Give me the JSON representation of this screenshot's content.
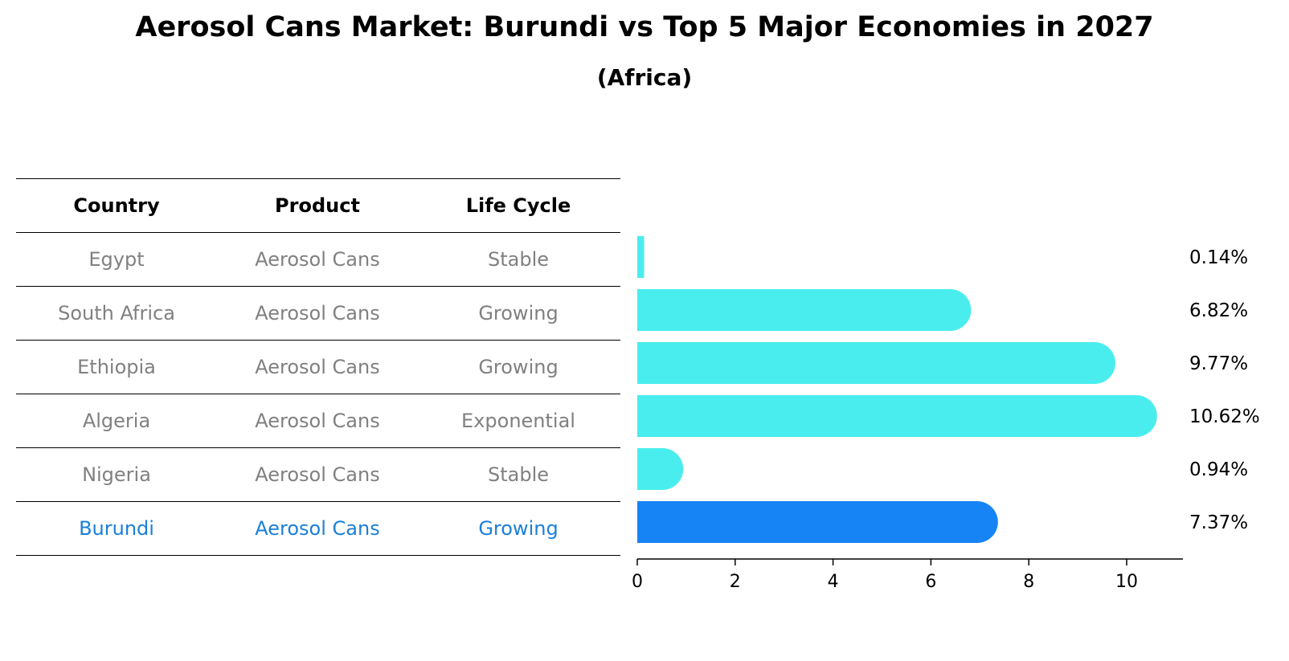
{
  "title": "Aerosol Cans Market: Burundi vs Top 5 Major Economies in 2027",
  "subtitle": "(Africa)",
  "table": {
    "headers": [
      "Country",
      "Product",
      "Life Cycle"
    ],
    "rows": [
      [
        "Egypt",
        "Aerosol Cans",
        "Stable"
      ],
      [
        "South Africa",
        "Aerosol Cans",
        "Growing"
      ],
      [
        "Ethiopia",
        "Aerosol Cans",
        "Growing"
      ],
      [
        "Algeria",
        "Aerosol Cans",
        "Exponential"
      ],
      [
        "Nigeria",
        "Aerosol Cans",
        "Stable"
      ],
      [
        "Burundi",
        "Aerosol Cans",
        "Growing"
      ]
    ],
    "highlight_row": 5
  },
  "colors": {
    "bar": "#4aeded",
    "highlight_bar": "#1784f5",
    "highlight_text": "#1a7fd9",
    "muted_text": "#808080"
  },
  "chart_data": {
    "type": "bar",
    "orientation": "horizontal",
    "categories": [
      "Egypt",
      "South Africa",
      "Ethiopia",
      "Algeria",
      "Nigeria",
      "Burundi"
    ],
    "values": [
      0.14,
      6.82,
      9.77,
      10.62,
      0.94,
      7.37
    ],
    "value_labels": [
      "0.14%",
      "6.82%",
      "9.77%",
      "10.62%",
      "0.94%",
      "7.37%"
    ],
    "highlight_index": 5,
    "xlim": [
      0,
      11.15
    ],
    "xticks": [
      0,
      2,
      4,
      6,
      8,
      10
    ],
    "grid": false
  }
}
